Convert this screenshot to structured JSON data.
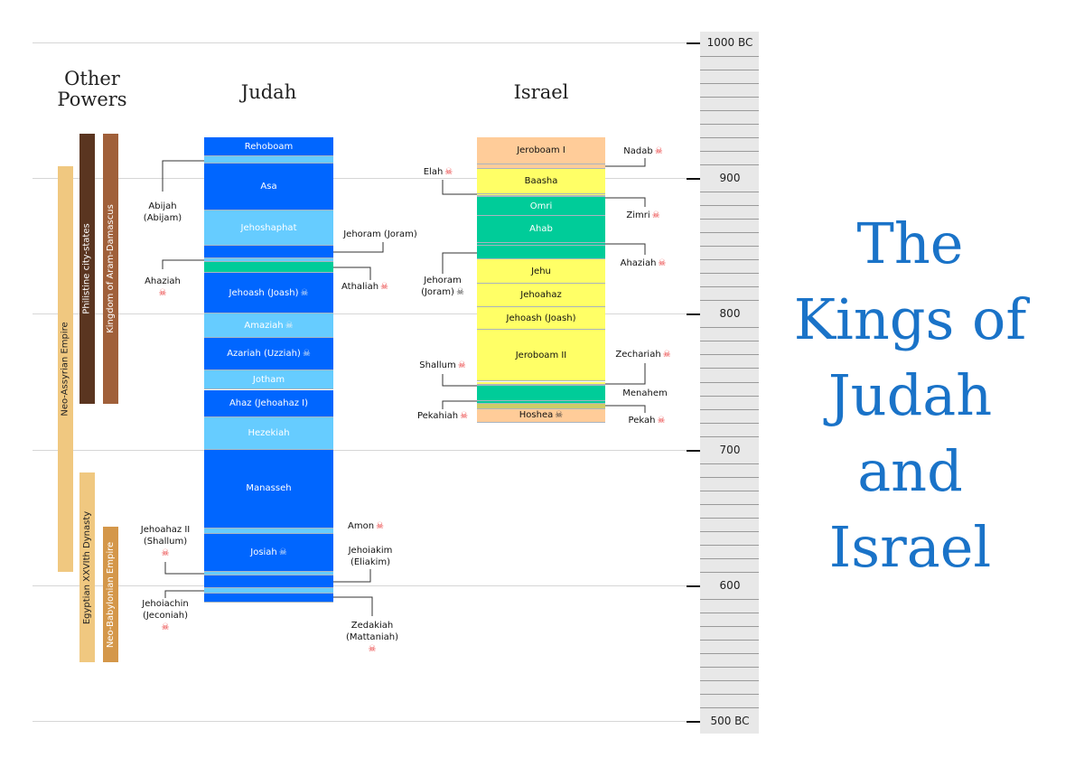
{
  "headers": {
    "other_powers_line1": "Other",
    "other_powers_line2": "Powers",
    "judah": "Judah",
    "israel": "Israel"
  },
  "title_lines": [
    "The",
    "Kings of",
    "Judah",
    "and",
    "Israel"
  ],
  "colors": {
    "title": "#1a73c8",
    "judah_dark": "#0066ff",
    "judah_light": "#66ccff",
    "teal": "#00cc99",
    "yellow": "#ffff66",
    "peach": "#ffcc99",
    "green": "#33cc33",
    "olive": "#cccc66",
    "skull_red": "#e83030"
  },
  "timeline": {
    "range_bc": [
      1000,
      500
    ],
    "minor_step_years": 10,
    "major_labels": [
      {
        "year": 1000,
        "label": "1000 BC"
      },
      {
        "year": 900,
        "label": "900"
      },
      {
        "year": 800,
        "label": "800"
      },
      {
        "year": 700,
        "label": "700"
      },
      {
        "year": 600,
        "label": "600"
      },
      {
        "year": 500,
        "label": "500 BC"
      }
    ]
  },
  "other_powers": [
    {
      "name": "Neo-Assyrian Empire",
      "start": 909,
      "end": 610,
      "color": "#f0c880",
      "text_color": "#222"
    },
    {
      "name": "Philistine city-states",
      "start": 933,
      "end": 734,
      "color": "#5a3520",
      "text_color": "#fff"
    },
    {
      "name": "Kingdom of Aram-Damascus",
      "start": 933,
      "end": 734,
      "color": "#a0603a",
      "text_color": "#fff"
    },
    {
      "name": "Egyptian XXVIth Dynasty",
      "start": 683,
      "end": 543,
      "color": "#f0c880",
      "text_color": "#222"
    },
    {
      "name": "Neo-Babylonian Empire",
      "start": 643,
      "end": 543,
      "color": "#d4974a",
      "text_color": "#fff"
    }
  ],
  "judah": [
    {
      "lines": [
        "Rehoboam"
      ],
      "start": 930,
      "end": 916,
      "color": "#0066ff",
      "placement": "inside",
      "skull": null
    },
    {
      "lines": [
        "Abijah",
        "(Abijam)"
      ],
      "start": 916,
      "end": 911,
      "color": "#66ccff",
      "placement": "left",
      "skull": null
    },
    {
      "lines": [
        "Asa"
      ],
      "start": 911,
      "end": 876,
      "color": "#0066ff",
      "placement": "inside",
      "skull": null
    },
    {
      "lines": [
        "Jehoshaphat"
      ],
      "start": 876,
      "end": 850,
      "color": "#66ccff",
      "placement": "inside",
      "skull": null
    },
    {
      "lines": [
        "Jehoram (Joram)"
      ],
      "start": 850,
      "end": 841,
      "color": "#0066ff",
      "placement": "right",
      "skull": null
    },
    {
      "lines": [
        "Ahaziah"
      ],
      "start": 841,
      "end": 838,
      "color": "#66ccff",
      "placement": "left",
      "skull": "#e83030",
      "skull_below": true
    },
    {
      "lines": [
        "Athaliah"
      ],
      "start": 838,
      "end": 830,
      "color": "#00cc99",
      "placement": "right",
      "skull": "#e83030"
    },
    {
      "lines": [
        "Jehoash (Joash)"
      ],
      "start": 830,
      "end": 800,
      "color": "#0066ff",
      "placement": "inside",
      "skull": "#dde8f5"
    },
    {
      "lines": [
        "Amaziah"
      ],
      "start": 800,
      "end": 782,
      "color": "#66ccff",
      "placement": "inside",
      "skull": "#f2f2f2"
    },
    {
      "lines": [
        "Azariah (Uzziah)"
      ],
      "start": 782,
      "end": 758,
      "color": "#0066ff",
      "placement": "inside",
      "skull": "#dde8f5"
    },
    {
      "lines": [
        "Jotham"
      ],
      "start": 758,
      "end": 744,
      "color": "#66ccff",
      "placement": "inside",
      "skull": null
    },
    {
      "lines": [
        "Ahaz (Jehoahaz I)"
      ],
      "start": 744,
      "end": 724,
      "color": "#0066ff",
      "placement": "inside",
      "skull": null
    },
    {
      "lines": [
        "Hezekiah"
      ],
      "start": 724,
      "end": 700,
      "color": "#66ccff",
      "placement": "inside",
      "skull": null
    },
    {
      "lines": [
        "Manasseh"
      ],
      "start": 700,
      "end": 642,
      "color": "#0066ff",
      "placement": "inside",
      "skull": null
    },
    {
      "lines": [
        "Amon"
      ],
      "start": 642,
      "end": 638,
      "color": "#66ccff",
      "placement": "right",
      "skull": "#e83030"
    },
    {
      "lines": [
        "Josiah"
      ],
      "start": 638,
      "end": 610,
      "color": "#0066ff",
      "placement": "inside",
      "skull": "#dde8f5"
    },
    {
      "lines": [
        "Jehoahaz II",
        "(Shallum)"
      ],
      "start": 610,
      "end": 607,
      "color": "#66ccff",
      "placement": "left",
      "skull": "#e83030",
      "skull_below": true
    },
    {
      "lines": [
        "Jehoiakim",
        "(Eliakim)"
      ],
      "start": 607,
      "end": 598,
      "color": "#0066ff",
      "placement": "right",
      "skull": null
    },
    {
      "lines": [
        "Jehoiachin",
        "(Jeconiah)"
      ],
      "start": 598,
      "end": 594,
      "color": "#66ccff",
      "placement": "left",
      "skull": "#e83030",
      "skull_below": true
    },
    {
      "lines": [
        "Zedakiah",
        "(Mattaniah)"
      ],
      "start": 594,
      "end": 587,
      "color": "#0066ff",
      "placement": "right",
      "skull": "#e83030",
      "skull_below": true
    }
  ],
  "israel": [
    {
      "lines": [
        "Jeroboam I"
      ],
      "start": 930,
      "end": 910,
      "color": "#ffcc99",
      "placement": "inside",
      "skull": null
    },
    {
      "lines": [
        "Nadab"
      ],
      "start": 910,
      "end": 907,
      "color": "#ffcc99",
      "placement": "right",
      "skull": "#e83030"
    },
    {
      "lines": [
        "Baasha"
      ],
      "start": 907,
      "end": 888,
      "color": "#ffff66",
      "placement": "inside",
      "skull": null
    },
    {
      "lines": [
        "Elah"
      ],
      "start": 888,
      "end": 887,
      "color": "#ffff66",
      "placement": "left",
      "skull": "#e83030"
    },
    {
      "lines": [
        "Zimri"
      ],
      "start": 887,
      "end": 886,
      "color": "#33cc33",
      "placement": "right",
      "skull": "#e83030"
    },
    {
      "lines": [
        "Omri"
      ],
      "start": 886,
      "end": 872,
      "color": "#00cc99",
      "placement": "inside",
      "skull": null
    },
    {
      "lines": [
        "Ahab"
      ],
      "start": 872,
      "end": 852,
      "color": "#00cc99",
      "placement": "inside",
      "skull": null
    },
    {
      "lines": [
        "Ahaziah"
      ],
      "start": 852,
      "end": 850,
      "color": "#00cc99",
      "placement": "right",
      "skull": "#e83030"
    },
    {
      "lines": [
        "Jehoram",
        "(Joram)"
      ],
      "start": 850,
      "end": 840,
      "color": "#00cc99",
      "placement": "left",
      "skull": "#333333"
    },
    {
      "lines": [
        "Jehu"
      ],
      "start": 840,
      "end": 822,
      "color": "#ffff66",
      "placement": "inside",
      "skull": null
    },
    {
      "lines": [
        "Jehoahaz"
      ],
      "start": 822,
      "end": 805,
      "color": "#ffff66",
      "placement": "inside",
      "skull": null
    },
    {
      "lines": [
        "Jehoash (Joash)"
      ],
      "start": 805,
      "end": 788,
      "color": "#ffff66",
      "placement": "inside",
      "skull": null
    },
    {
      "lines": [
        "Jeroboam II"
      ],
      "start": 788,
      "end": 750,
      "color": "#ffff66",
      "placement": "inside",
      "skull": null
    },
    {
      "lines": [
        "Zechariah"
      ],
      "start": 750,
      "end": 748,
      "color": "#ffff66",
      "placement": "right",
      "skull": "#e83030"
    },
    {
      "lines": [
        "Shallum"
      ],
      "start": 748,
      "end": 747,
      "color": "#cccc66",
      "placement": "left",
      "skull": "#e83030"
    },
    {
      "lines": [
        "Menahem"
      ],
      "start": 747,
      "end": 736,
      "color": "#00cc99",
      "placement": "right",
      "skull": null
    },
    {
      "lines": [
        "Pekahiah"
      ],
      "start": 736,
      "end": 734,
      "color": "#00cc99",
      "placement": "left",
      "skull": "#e83030"
    },
    {
      "lines": [
        "Pekah"
      ],
      "start": 734,
      "end": 730,
      "color": "#cccc66",
      "placement": "right",
      "skull": "#e83030"
    },
    {
      "lines": [
        "Hoshea"
      ],
      "start": 730,
      "end": 720,
      "color": "#ffcc99",
      "placement": "inside",
      "skull": "#333333"
    }
  ]
}
